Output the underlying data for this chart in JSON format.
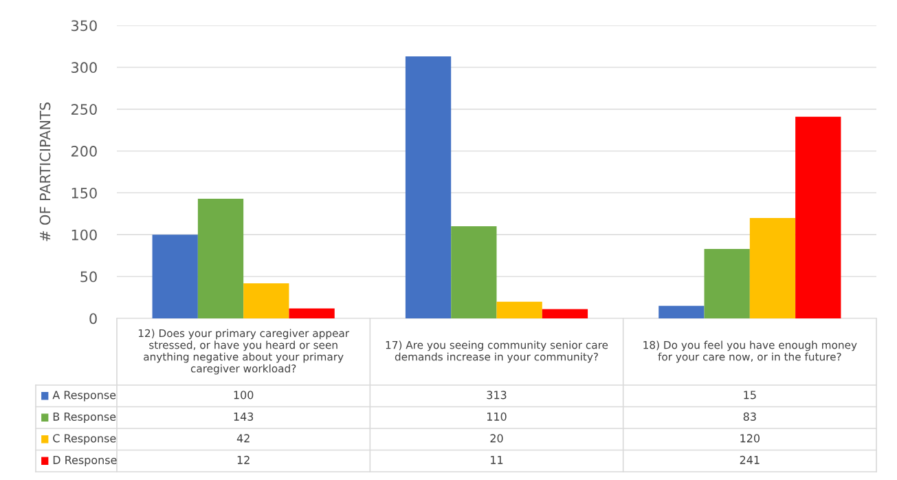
{
  "chart_data": {
    "type": "bar",
    "ylabel": "# OF PARTICIPANTS",
    "categories": [
      "12) Does your primary caregiver appear stressed, or have you heard or seen anything negative about your primary caregiver workload?",
      "17) Are you seeing community senior care demands increase in your community?",
      "18) Do you feel you have enough money for your care now, or in the future?"
    ],
    "series": [
      {
        "name": "A Response",
        "color": "#4472c4",
        "values": [
          100,
          313,
          15
        ]
      },
      {
        "name": "B Response",
        "color": "#70ad47",
        "values": [
          143,
          110,
          83
        ]
      },
      {
        "name": "C Response",
        "color": "#ffc000",
        "values": [
          42,
          20,
          120
        ]
      },
      {
        "name": "D Response",
        "color": "#ff0000",
        "values": [
          12,
          11,
          241
        ]
      }
    ],
    "ylim": [
      0,
      350
    ],
    "yticks": [
      0,
      50,
      100,
      150,
      200,
      250,
      300,
      350
    ],
    "grid": "y",
    "data_labels": true,
    "legend": "bottom"
  }
}
